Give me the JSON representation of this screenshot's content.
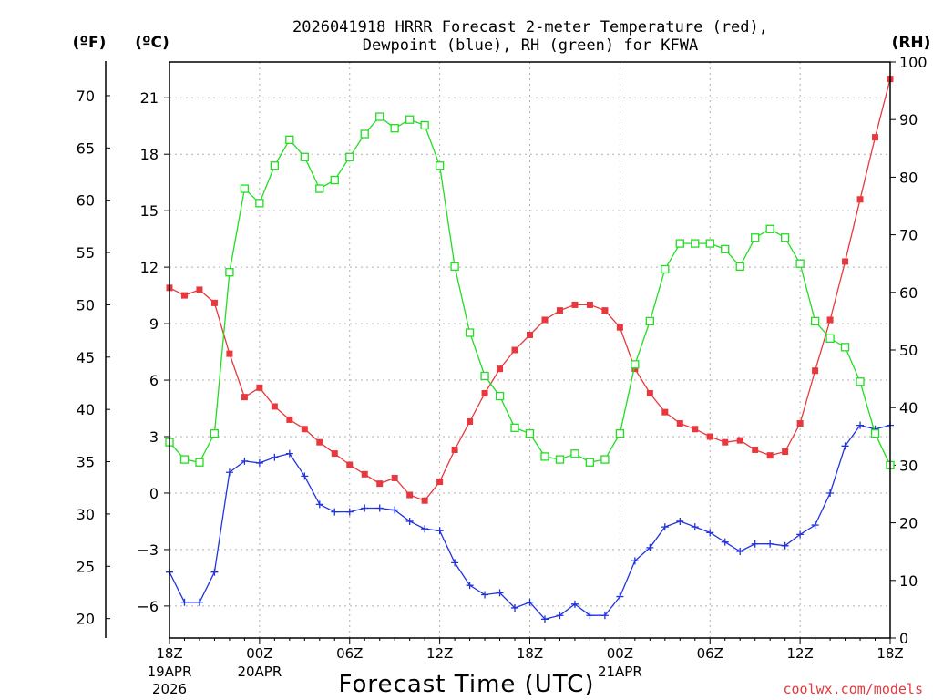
{
  "chart_data": {
    "type": "line",
    "title_line1": "2026041918 HRRR Forecast 2-meter Temperature (red),",
    "title_line2": "Dewpoint (blue), RH (green) for KFWA",
    "xlabel": "Forecast Time (UTC)",
    "credit": "coolwx.com/models",
    "units": {
      "fahrenheit": "(ºF)",
      "celsius": "(ºC)",
      "rh": "(RH)"
    },
    "x_range_hours": [
      0,
      48
    ],
    "x_ticks": [
      {
        "hour": 0,
        "label": "18Z",
        "date": "19APR",
        "year": "2026"
      },
      {
        "hour": 6,
        "label": "00Z",
        "date": "20APR",
        "year": ""
      },
      {
        "hour": 12,
        "label": "06Z",
        "date": "",
        "year": ""
      },
      {
        "hour": 18,
        "label": "12Z",
        "date": "",
        "year": ""
      },
      {
        "hour": 24,
        "label": "18Z",
        "date": "",
        "year": ""
      },
      {
        "hour": 30,
        "label": "00Z",
        "date": "21APR",
        "year": ""
      },
      {
        "hour": 36,
        "label": "06Z",
        "date": "",
        "year": ""
      },
      {
        "hour": 42,
        "label": "12Z",
        "date": "",
        "year": ""
      },
      {
        "hour": 48,
        "label": "18Z",
        "date": "",
        "year": ""
      }
    ],
    "y_celsius_range": [
      -7.7,
      22.9
    ],
    "y_celsius_ticks": [
      -6,
      -3,
      0,
      3,
      6,
      9,
      12,
      15,
      18,
      21
    ],
    "y_fahrenheit_ticks": [
      20,
      25,
      30,
      35,
      40,
      45,
      50,
      55,
      60,
      65,
      70
    ],
    "y_rh_range": [
      0,
      100
    ],
    "y_rh_ticks": [
      0,
      10,
      20,
      30,
      40,
      50,
      60,
      70,
      80,
      90,
      100
    ],
    "series": [
      {
        "name": "Temperature",
        "axis": "celsius",
        "color": "#e8383d",
        "marker": "filled-square",
        "values": [
          10.9,
          10.5,
          10.8,
          10.1,
          7.4,
          5.1,
          5.6,
          4.6,
          3.9,
          3.4,
          2.7,
          2.1,
          1.5,
          1.0,
          0.5,
          0.8,
          -0.1,
          -0.4,
          0.6,
          2.3,
          3.8,
          5.3,
          6.6,
          7.6,
          8.4,
          9.2,
          9.7,
          10.0,
          10.0,
          9.7,
          8.8,
          6.6,
          5.3,
          4.3,
          3.7,
          3.4,
          3.0,
          2.7,
          2.8,
          2.3,
          2.0,
          2.2,
          3.7,
          6.5,
          9.2,
          12.3,
          15.6,
          18.9,
          22.0
        ]
      },
      {
        "name": "Dewpoint",
        "axis": "celsius",
        "color": "#2233dd",
        "marker": "plus",
        "values": [
          -4.2,
          -5.8,
          -5.8,
          -4.2,
          1.1,
          1.7,
          1.6,
          1.9,
          2.1,
          0.9,
          -0.6,
          -1.0,
          -1.0,
          -0.8,
          -0.8,
          -0.9,
          -1.5,
          -1.9,
          -2.0,
          -3.7,
          -4.9,
          -5.4,
          -5.3,
          -6.1,
          -5.8,
          -6.7,
          -6.5,
          -5.9,
          -6.5,
          -6.5,
          -5.5,
          -3.6,
          -2.9,
          -1.8,
          -1.5,
          -1.8,
          -2.1,
          -2.6,
          -3.1,
          -2.7,
          -2.7,
          -2.8,
          -2.2,
          -1.7,
          0.0,
          2.5,
          3.6,
          3.4,
          3.6
        ]
      },
      {
        "name": "RH",
        "axis": "rh",
        "color": "#22dd22",
        "marker": "open-square",
        "values": [
          34,
          31,
          30.5,
          35.5,
          63.5,
          78,
          75.5,
          82,
          86.5,
          83.5,
          78,
          79.5,
          83.5,
          87.5,
          90.5,
          88.5,
          90,
          89,
          82,
          64.5,
          53,
          45.5,
          42,
          36.5,
          35.5,
          31.5,
          31,
          32,
          30.5,
          31,
          35.5,
          47.5,
          55,
          64,
          68.5,
          68.5,
          68.5,
          67.5,
          64.5,
          69.5,
          71,
          69.5,
          65,
          55,
          52,
          50.5,
          44.5,
          35.5,
          30
        ]
      }
    ]
  }
}
